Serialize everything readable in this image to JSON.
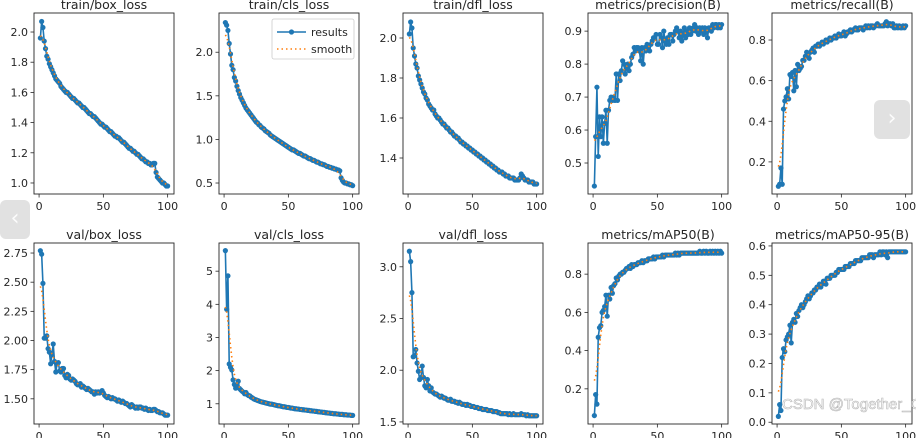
{
  "chart_data": [
    {
      "type": "line",
      "title": "train/box_loss",
      "x_range": [
        1,
        100
      ],
      "xticks": [
        "0",
        "50",
        "100"
      ],
      "ylim": [
        0.927,
        2.126
      ],
      "yticks": [
        1.0,
        1.2,
        1.4,
        1.6,
        1.8,
        2.0
      ],
      "ytick_labels": [
        "1.0",
        "1.2",
        "1.4",
        "1.6",
        "1.8",
        "2.0"
      ],
      "values": [
        1.96,
        2.07,
        2.03,
        1.94,
        1.89,
        1.84,
        1.82,
        1.79,
        1.77,
        1.75,
        1.73,
        1.71,
        1.69,
        1.68,
        1.67,
        1.66,
        1.64,
        1.63,
        1.62,
        1.61,
        1.6,
        1.6,
        1.59,
        1.58,
        1.57,
        1.56,
        1.56,
        1.55,
        1.54,
        1.53,
        1.53,
        1.52,
        1.51,
        1.5,
        1.5,
        1.49,
        1.48,
        1.47,
        1.46,
        1.46,
        1.45,
        1.44,
        1.44,
        1.43,
        1.42,
        1.41,
        1.4,
        1.39,
        1.39,
        1.38,
        1.37,
        1.37,
        1.36,
        1.35,
        1.34,
        1.34,
        1.33,
        1.32,
        1.31,
        1.31,
        1.3,
        1.3,
        1.29,
        1.28,
        1.27,
        1.27,
        1.26,
        1.25,
        1.24,
        1.23,
        1.23,
        1.22,
        1.21,
        1.21,
        1.2,
        1.19,
        1.19,
        1.18,
        1.17,
        1.16,
        1.16,
        1.15,
        1.14,
        1.14,
        1.13,
        1.13,
        1.12,
        1.12,
        1.13,
        1.13,
        1.07,
        1.04,
        1.03,
        1.02,
        1.01,
        1.0,
        1.0,
        0.99,
        0.98,
        0.98
      ]
    },
    {
      "type": "line",
      "title": "train/cls_loss",
      "x_range": [
        1,
        100
      ],
      "xticks": [
        "0",
        "50",
        "100"
      ],
      "ylim": [
        0.374,
        2.45
      ],
      "yticks": [
        0.5,
        1.0,
        1.5,
        2.0
      ],
      "ytick_labels": [
        "0.5",
        "1.0",
        "1.5",
        "2.0"
      ],
      "legend": {
        "placement": "top-right",
        "entries": [
          "results",
          "smooth"
        ]
      },
      "values": [
        2.34,
        2.31,
        2.25,
        2.1,
        1.98,
        1.85,
        1.8,
        1.71,
        1.67,
        1.61,
        1.56,
        1.52,
        1.48,
        1.45,
        1.42,
        1.39,
        1.36,
        1.34,
        1.32,
        1.3,
        1.28,
        1.26,
        1.24,
        1.22,
        1.2,
        1.19,
        1.17,
        1.16,
        1.14,
        1.13,
        1.12,
        1.1,
        1.09,
        1.08,
        1.07,
        1.05,
        1.04,
        1.03,
        1.02,
        1.01,
        1.0,
        0.99,
        0.98,
        0.97,
        0.96,
        0.95,
        0.94,
        0.93,
        0.92,
        0.91,
        0.9,
        0.89,
        0.88,
        0.88,
        0.87,
        0.86,
        0.85,
        0.84,
        0.84,
        0.83,
        0.82,
        0.81,
        0.81,
        0.8,
        0.79,
        0.78,
        0.78,
        0.77,
        0.76,
        0.76,
        0.75,
        0.74,
        0.74,
        0.73,
        0.72,
        0.72,
        0.71,
        0.71,
        0.7,
        0.69,
        0.69,
        0.68,
        0.68,
        0.67,
        0.67,
        0.66,
        0.66,
        0.65,
        0.65,
        0.64,
        0.56,
        0.53,
        0.51,
        0.5,
        0.5,
        0.49,
        0.49,
        0.48,
        0.48,
        0.47
      ]
    },
    {
      "type": "line",
      "title": "train/dfl_loss",
      "x_range": [
        1,
        100
      ],
      "xticks": [
        "0",
        "50",
        "100"
      ],
      "ylim": [
        1.22,
        2.125
      ],
      "yticks": [
        1.4,
        1.6,
        1.8,
        2.0
      ],
      "ytick_labels": [
        "1.4",
        "1.6",
        "1.8",
        "2.0"
      ],
      "values": [
        2.02,
        2.08,
        2.05,
        1.95,
        1.91,
        1.87,
        1.85,
        1.81,
        1.79,
        1.77,
        1.75,
        1.73,
        1.72,
        1.7,
        1.69,
        1.67,
        1.66,
        1.65,
        1.64,
        1.64,
        1.62,
        1.61,
        1.6,
        1.6,
        1.59,
        1.58,
        1.57,
        1.57,
        1.56,
        1.55,
        1.55,
        1.54,
        1.53,
        1.53,
        1.52,
        1.51,
        1.51,
        1.5,
        1.5,
        1.49,
        1.48,
        1.48,
        1.47,
        1.47,
        1.46,
        1.46,
        1.45,
        1.45,
        1.44,
        1.44,
        1.43,
        1.43,
        1.42,
        1.42,
        1.41,
        1.41,
        1.4,
        1.4,
        1.39,
        1.39,
        1.38,
        1.38,
        1.37,
        1.37,
        1.36,
        1.36,
        1.35,
        1.35,
        1.34,
        1.34,
        1.33,
        1.33,
        1.33,
        1.32,
        1.32,
        1.31,
        1.31,
        1.31,
        1.3,
        1.3,
        1.3,
        1.3,
        1.29,
        1.29,
        1.29,
        1.29,
        1.3,
        1.32,
        1.31,
        1.3,
        1.29,
        1.29,
        1.29,
        1.28,
        1.28,
        1.28,
        1.28,
        1.27,
        1.27,
        1.27
      ]
    },
    {
      "type": "line",
      "title": "metrics/precision(B)",
      "x_range": [
        1,
        100
      ],
      "xticks": [
        "0",
        "50",
        "100"
      ],
      "ylim": [
        0.406,
        0.955
      ],
      "yticks": [
        0.5,
        0.6,
        0.7,
        0.8,
        0.9
      ],
      "ytick_labels": [
        "0.5",
        "0.6",
        "0.7",
        "0.8",
        "0.9"
      ],
      "values": [
        0.43,
        0.58,
        0.73,
        0.52,
        0.64,
        0.58,
        0.64,
        0.56,
        0.62,
        0.66,
        0.56,
        0.66,
        0.69,
        0.7,
        0.69,
        0.7,
        0.69,
        0.77,
        0.69,
        0.77,
        0.75,
        0.78,
        0.81,
        0.8,
        0.77,
        0.79,
        0.8,
        0.78,
        0.8,
        0.82,
        0.83,
        0.85,
        0.84,
        0.85,
        0.85,
        0.84,
        0.81,
        0.85,
        0.8,
        0.85,
        0.84,
        0.86,
        0.85,
        0.84,
        0.86,
        0.87,
        0.88,
        0.88,
        0.89,
        0.86,
        0.86,
        0.89,
        0.88,
        0.85,
        0.9,
        0.87,
        0.86,
        0.88,
        0.86,
        0.89,
        0.89,
        0.87,
        0.89,
        0.9,
        0.91,
        0.9,
        0.88,
        0.9,
        0.87,
        0.89,
        0.91,
        0.88,
        0.9,
        0.89,
        0.91,
        0.89,
        0.9,
        0.91,
        0.92,
        0.9,
        0.91,
        0.89,
        0.91,
        0.9,
        0.91,
        0.89,
        0.91,
        0.9,
        0.88,
        0.91,
        0.91,
        0.9,
        0.92,
        0.91,
        0.92,
        0.92,
        0.91,
        0.92,
        0.91,
        0.92
      ]
    },
    {
      "type": "line",
      "title": "metrics/recall(B)",
      "x_range": [
        1,
        100
      ],
      "xticks": [
        "0",
        "50",
        "100"
      ],
      "ylim": [
        0.042,
        0.933
      ],
      "yticks": [
        0.2,
        0.4,
        0.6,
        0.8
      ],
      "ytick_labels": [
        "0.2",
        "0.4",
        "0.6",
        "0.8"
      ],
      "values": [
        0.08,
        0.09,
        0.17,
        0.09,
        0.46,
        0.5,
        0.52,
        0.56,
        0.51,
        0.63,
        0.62,
        0.64,
        0.55,
        0.65,
        0.57,
        0.68,
        0.65,
        0.66,
        0.67,
        0.7,
        0.7,
        0.72,
        0.74,
        0.73,
        0.71,
        0.74,
        0.75,
        0.76,
        0.74,
        0.77,
        0.77,
        0.78,
        0.77,
        0.78,
        0.79,
        0.78,
        0.79,
        0.8,
        0.79,
        0.8,
        0.81,
        0.8,
        0.81,
        0.81,
        0.82,
        0.81,
        0.82,
        0.83,
        0.82,
        0.82,
        0.83,
        0.84,
        0.82,
        0.83,
        0.84,
        0.84,
        0.85,
        0.84,
        0.85,
        0.85,
        0.86,
        0.85,
        0.85,
        0.86,
        0.86,
        0.86,
        0.85,
        0.86,
        0.87,
        0.86,
        0.87,
        0.86,
        0.87,
        0.87,
        0.86,
        0.87,
        0.87,
        0.88,
        0.87,
        0.87,
        0.87,
        0.87,
        0.87,
        0.88,
        0.89,
        0.87,
        0.88,
        0.88,
        0.87,
        0.88,
        0.86,
        0.86,
        0.87,
        0.86,
        0.87,
        0.86,
        0.86,
        0.87,
        0.86,
        0.87
      ]
    },
    {
      "type": "line",
      "title": "val/box_loss",
      "x_range": [
        1,
        100
      ],
      "xticks": [
        "0",
        "50",
        "100"
      ],
      "ylim": [
        1.284,
        2.836
      ],
      "yticks": [
        1.5,
        1.75,
        2.0,
        2.25,
        2.5,
        2.75
      ],
      "ytick_labels": [
        "1.50",
        "1.75",
        "2.00",
        "2.25",
        "2.50",
        "2.75"
      ],
      "values": [
        2.77,
        2.74,
        2.49,
        2.02,
        2.02,
        2.04,
        1.93,
        1.9,
        1.8,
        1.88,
        1.97,
        1.82,
        1.73,
        1.8,
        1.81,
        1.74,
        1.73,
        1.76,
        1.76,
        1.7,
        1.68,
        1.71,
        1.7,
        1.67,
        1.66,
        1.67,
        1.66,
        1.65,
        1.63,
        1.62,
        1.62,
        1.63,
        1.6,
        1.61,
        1.6,
        1.59,
        1.58,
        1.59,
        1.58,
        1.57,
        1.56,
        1.56,
        1.54,
        1.56,
        1.55,
        1.56,
        1.55,
        1.56,
        1.57,
        1.55,
        1.53,
        1.52,
        1.51,
        1.52,
        1.51,
        1.5,
        1.51,
        1.5,
        1.5,
        1.49,
        1.48,
        1.49,
        1.48,
        1.47,
        1.48,
        1.47,
        1.46,
        1.46,
        1.45,
        1.44,
        1.43,
        1.45,
        1.44,
        1.43,
        1.42,
        1.43,
        1.42,
        1.43,
        1.43,
        1.42,
        1.42,
        1.41,
        1.42,
        1.41,
        1.4,
        1.41,
        1.4,
        1.4,
        1.41,
        1.41,
        1.4,
        1.39,
        1.39,
        1.38,
        1.38,
        1.38,
        1.37,
        1.36,
        1.36,
        1.36
      ]
    },
    {
      "type": "line",
      "title": "val/cls_loss",
      "x_range": [
        1,
        100
      ],
      "xticks": [
        "0",
        "50",
        "100"
      ],
      "ylim": [
        0.39,
        5.85
      ],
      "yticks": [
        1,
        2,
        3,
        4,
        5
      ],
      "ytick_labels": [
        "1",
        "2",
        "3",
        "4",
        "5"
      ],
      "values": [
        5.62,
        3.85,
        4.86,
        2.2,
        2.1,
        2.02,
        1.72,
        1.58,
        1.47,
        1.55,
        1.68,
        1.46,
        1.42,
        1.38,
        1.35,
        1.3,
        1.34,
        1.28,
        1.25,
        1.24,
        1.2,
        1.18,
        1.15,
        1.13,
        1.12,
        1.1,
        1.09,
        1.07,
        1.06,
        1.05,
        1.04,
        1.03,
        1.02,
        1.01,
        1.0,
        0.99,
        0.99,
        0.98,
        0.97,
        0.96,
        0.95,
        0.94,
        0.94,
        0.93,
        0.92,
        0.91,
        0.91,
        0.9,
        0.89,
        0.89,
        0.88,
        0.87,
        0.87,
        0.86,
        0.85,
        0.85,
        0.84,
        0.84,
        0.83,
        0.83,
        0.82,
        0.82,
        0.81,
        0.81,
        0.8,
        0.8,
        0.79,
        0.79,
        0.78,
        0.78,
        0.77,
        0.77,
        0.76,
        0.76,
        0.75,
        0.75,
        0.74,
        0.74,
        0.73,
        0.73,
        0.72,
        0.72,
        0.71,
        0.71,
        0.7,
        0.7,
        0.7,
        0.69,
        0.69,
        0.68,
        0.68,
        0.68,
        0.67,
        0.67,
        0.67,
        0.66,
        0.66,
        0.66,
        0.65,
        0.65
      ]
    },
    {
      "type": "line",
      "title": "val/dfl_loss",
      "x_range": [
        1,
        100
      ],
      "xticks": [
        "0",
        "50",
        "100"
      ],
      "ylim": [
        1.48,
        3.23
      ],
      "yticks": [
        1.5,
        2.0,
        2.5,
        3.0
      ],
      "ytick_labels": [
        "1.5",
        "2.0",
        "2.5",
        "3.0"
      ],
      "values": [
        3.15,
        3.05,
        2.75,
        2.13,
        2.14,
        2.2,
        2.07,
        1.99,
        1.91,
        1.93,
        2.04,
        1.93,
        1.85,
        1.83,
        1.91,
        1.85,
        1.8,
        1.83,
        1.79,
        1.78,
        1.77,
        1.77,
        1.76,
        1.75,
        1.74,
        1.75,
        1.74,
        1.73,
        1.73,
        1.72,
        1.71,
        1.71,
        1.72,
        1.7,
        1.7,
        1.7,
        1.69,
        1.69,
        1.68,
        1.69,
        1.68,
        1.67,
        1.67,
        1.67,
        1.66,
        1.67,
        1.66,
        1.66,
        1.65,
        1.65,
        1.65,
        1.64,
        1.64,
        1.64,
        1.63,
        1.63,
        1.63,
        1.62,
        1.62,
        1.62,
        1.62,
        1.61,
        1.61,
        1.61,
        1.61,
        1.6,
        1.6,
        1.6,
        1.6,
        1.59,
        1.59,
        1.58,
        1.58,
        1.58,
        1.58,
        1.58,
        1.58,
        1.57,
        1.58,
        1.57,
        1.57,
        1.58,
        1.57,
        1.57,
        1.57,
        1.57,
        1.57,
        1.58,
        1.57,
        1.57,
        1.57,
        1.56,
        1.57,
        1.56,
        1.56,
        1.56,
        1.56,
        1.56,
        1.56,
        1.56
      ]
    },
    {
      "type": "line",
      "title": "metrics/mAP50(B)",
      "x_range": [
        1,
        100
      ],
      "xticks": [
        "0",
        "50",
        "100"
      ],
      "ylim": [
        0.016,
        0.963
      ],
      "yticks": [
        0.2,
        0.4,
        0.6,
        0.8
      ],
      "ytick_labels": [
        "0.2",
        "0.4",
        "0.6",
        "0.8"
      ],
      "values": [
        0.06,
        0.17,
        0.12,
        0.47,
        0.52,
        0.53,
        0.6,
        0.61,
        0.63,
        0.69,
        0.58,
        0.69,
        0.67,
        0.73,
        0.7,
        0.74,
        0.75,
        0.78,
        0.77,
        0.79,
        0.8,
        0.8,
        0.81,
        0.81,
        0.82,
        0.83,
        0.83,
        0.84,
        0.83,
        0.85,
        0.84,
        0.85,
        0.85,
        0.85,
        0.86,
        0.86,
        0.86,
        0.87,
        0.86,
        0.87,
        0.87,
        0.87,
        0.88,
        0.88,
        0.88,
        0.88,
        0.89,
        0.88,
        0.89,
        0.89,
        0.89,
        0.89,
        0.89,
        0.9,
        0.89,
        0.9,
        0.9,
        0.9,
        0.9,
        0.9,
        0.9,
        0.9,
        0.9,
        0.91,
        0.9,
        0.91,
        0.9,
        0.91,
        0.91,
        0.91,
        0.91,
        0.91,
        0.91,
        0.91,
        0.91,
        0.91,
        0.91,
        0.91,
        0.91,
        0.91,
        0.91,
        0.91,
        0.92,
        0.91,
        0.91,
        0.92,
        0.91,
        0.92,
        0.91,
        0.91,
        0.92,
        0.91,
        0.92,
        0.91,
        0.92,
        0.91,
        0.92,
        0.91,
        0.92,
        0.91
      ]
    },
    {
      "type": "line",
      "title": "metrics/mAP50-95(B)",
      "x_range": [
        1,
        100
      ],
      "xticks": [
        "0",
        "50",
        "100"
      ],
      "ylim": [
        -0.006,
        0.61
      ],
      "yticks": [
        0.0,
        0.1,
        0.2,
        0.3,
        0.4,
        0.5,
        0.6
      ],
      "ytick_labels": [
        "0.0",
        "0.1",
        "0.2",
        "0.3",
        "0.4",
        "0.5",
        "0.6"
      ],
      "values": [
        0.02,
        0.06,
        0.04,
        0.22,
        0.25,
        0.24,
        0.28,
        0.29,
        0.3,
        0.33,
        0.27,
        0.34,
        0.35,
        0.34,
        0.37,
        0.36,
        0.38,
        0.39,
        0.4,
        0.39,
        0.4,
        0.41,
        0.42,
        0.43,
        0.42,
        0.43,
        0.44,
        0.44,
        0.45,
        0.45,
        0.46,
        0.46,
        0.47,
        0.46,
        0.47,
        0.48,
        0.48,
        0.47,
        0.49,
        0.49,
        0.49,
        0.5,
        0.5,
        0.5,
        0.5,
        0.51,
        0.51,
        0.52,
        0.52,
        0.52,
        0.52,
        0.52,
        0.53,
        0.53,
        0.53,
        0.53,
        0.54,
        0.54,
        0.54,
        0.54,
        0.55,
        0.55,
        0.55,
        0.55,
        0.55,
        0.56,
        0.56,
        0.56,
        0.56,
        0.56,
        0.56,
        0.57,
        0.57,
        0.57,
        0.56,
        0.57,
        0.57,
        0.57,
        0.57,
        0.58,
        0.57,
        0.58,
        0.58,
        0.57,
        0.58,
        0.56,
        0.58,
        0.58,
        0.58,
        0.58,
        0.58,
        0.58,
        0.58,
        0.58,
        0.58,
        0.58,
        0.58,
        0.58,
        0.58,
        0.58
      ]
    }
  ],
  "colors": {
    "results": "#1f77b4",
    "smooth": "#ff7f0e",
    "axis": "#262626"
  },
  "overlay": {
    "prev_icon": "chevron-left-icon",
    "prev_glyph": "‹",
    "next_icon": "chevron-right-icon",
    "next_glyph": "›",
    "watermark": "CSDN @Together_CZ"
  }
}
